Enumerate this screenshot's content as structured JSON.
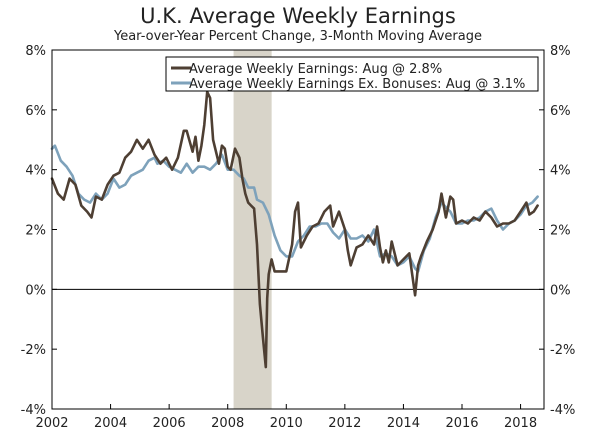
{
  "chart_data": {
    "type": "line",
    "title": "U.K. Average Weekly Earnings",
    "subtitle": "Year-over-Year Percent Change, 3-Month Moving Average",
    "xlabel": "",
    "ylabel": "",
    "xlim": [
      2002,
      2018.8
    ],
    "ylim": [
      -4,
      8
    ],
    "yticks": [
      -4,
      -2,
      0,
      2,
      4,
      6,
      8
    ],
    "ytick_labels": [
      "-4%",
      "-2%",
      "0%",
      "2%",
      "4%",
      "6%",
      "8%"
    ],
    "xticks": [
      2002,
      2004,
      2006,
      2008,
      2010,
      2012,
      2014,
      2016,
      2018
    ],
    "xtick_labels": [
      "2002",
      "2004",
      "2006",
      "2008",
      "2010",
      "2012",
      "2014",
      "2016",
      "2018"
    ],
    "recession": {
      "start": 2008.2,
      "end": 2009.5
    },
    "legend_position": "top-right",
    "colors": {
      "recession": "#d8d4c9",
      "zero_line": "#000000",
      "axis": "#555555"
    },
    "series": [
      {
        "name": "Average Weekly Earnings: Aug @ 2.8%",
        "color": "#4e3f33",
        "points": [
          [
            2002.0,
            3.7
          ],
          [
            2002.2,
            3.2
          ],
          [
            2002.4,
            3.0
          ],
          [
            2002.6,
            3.7
          ],
          [
            2002.8,
            3.5
          ],
          [
            2003.0,
            2.8
          ],
          [
            2003.2,
            2.6
          ],
          [
            2003.35,
            2.4
          ],
          [
            2003.5,
            3.1
          ],
          [
            2003.7,
            3.0
          ],
          [
            2003.9,
            3.5
          ],
          [
            2004.1,
            3.8
          ],
          [
            2004.3,
            3.9
          ],
          [
            2004.5,
            4.4
          ],
          [
            2004.7,
            4.6
          ],
          [
            2004.9,
            5.0
          ],
          [
            2005.1,
            4.7
          ],
          [
            2005.3,
            5.0
          ],
          [
            2005.5,
            4.5
          ],
          [
            2005.7,
            4.2
          ],
          [
            2005.9,
            4.4
          ],
          [
            2006.1,
            4.0
          ],
          [
            2006.3,
            4.4
          ],
          [
            2006.5,
            5.3
          ],
          [
            2006.6,
            5.3
          ],
          [
            2006.8,
            4.6
          ],
          [
            2006.9,
            5.1
          ],
          [
            2007.0,
            4.3
          ],
          [
            2007.1,
            4.8
          ],
          [
            2007.2,
            5.5
          ],
          [
            2007.3,
            6.6
          ],
          [
            2007.4,
            6.4
          ],
          [
            2007.5,
            5.0
          ],
          [
            2007.7,
            4.2
          ],
          [
            2007.8,
            4.8
          ],
          [
            2007.9,
            4.7
          ],
          [
            2008.0,
            4.1
          ],
          [
            2008.1,
            4.0
          ],
          [
            2008.25,
            4.7
          ],
          [
            2008.4,
            4.4
          ],
          [
            2008.5,
            3.7
          ],
          [
            2008.6,
            3.2
          ],
          [
            2008.7,
            2.9
          ],
          [
            2008.8,
            2.8
          ],
          [
            2008.9,
            2.7
          ],
          [
            2009.0,
            1.5
          ],
          [
            2009.1,
            -0.5
          ],
          [
            2009.2,
            -1.6
          ],
          [
            2009.3,
            -2.6
          ],
          [
            2009.35,
            -0.3
          ],
          [
            2009.4,
            0.5
          ],
          [
            2009.5,
            1.0
          ],
          [
            2009.6,
            0.6
          ],
          [
            2009.8,
            0.6
          ],
          [
            2010.0,
            0.6
          ],
          [
            2010.2,
            1.5
          ],
          [
            2010.3,
            2.6
          ],
          [
            2010.4,
            2.9
          ],
          [
            2010.5,
            1.4
          ],
          [
            2010.7,
            1.8
          ],
          [
            2010.9,
            2.1
          ],
          [
            2011.1,
            2.2
          ],
          [
            2011.3,
            2.6
          ],
          [
            2011.5,
            2.8
          ],
          [
            2011.6,
            2.1
          ],
          [
            2011.8,
            2.6
          ],
          [
            2012.0,
            2.0
          ],
          [
            2012.1,
            1.3
          ],
          [
            2012.2,
            0.8
          ],
          [
            2012.4,
            1.4
          ],
          [
            2012.6,
            1.5
          ],
          [
            2012.8,
            1.8
          ],
          [
            2013.0,
            1.5
          ],
          [
            2013.1,
            2.1
          ],
          [
            2013.2,
            1.4
          ],
          [
            2013.3,
            0.9
          ],
          [
            2013.4,
            1.3
          ],
          [
            2013.5,
            0.9
          ],
          [
            2013.6,
            1.6
          ],
          [
            2013.8,
            0.8
          ],
          [
            2014.0,
            1.0
          ],
          [
            2014.2,
            1.2
          ],
          [
            2014.3,
            0.5
          ],
          [
            2014.4,
            -0.2
          ],
          [
            2014.5,
            0.8
          ],
          [
            2014.6,
            1.1
          ],
          [
            2014.8,
            1.6
          ],
          [
            2015.0,
            2.0
          ],
          [
            2015.2,
            2.6
          ],
          [
            2015.3,
            3.2
          ],
          [
            2015.45,
            2.4
          ],
          [
            2015.6,
            3.1
          ],
          [
            2015.7,
            3.0
          ],
          [
            2015.8,
            2.2
          ],
          [
            2016.0,
            2.3
          ],
          [
            2016.2,
            2.2
          ],
          [
            2016.4,
            2.4
          ],
          [
            2016.6,
            2.3
          ],
          [
            2016.8,
            2.6
          ],
          [
            2017.0,
            2.4
          ],
          [
            2017.2,
            2.1
          ],
          [
            2017.4,
            2.2
          ],
          [
            2017.6,
            2.2
          ],
          [
            2017.8,
            2.3
          ],
          [
            2018.0,
            2.6
          ],
          [
            2018.2,
            2.9
          ],
          [
            2018.3,
            2.5
          ],
          [
            2018.45,
            2.6
          ],
          [
            2018.58,
            2.8
          ]
        ]
      },
      {
        "name": "Average Weekly Earnings Ex. Bonuses: Aug @ 3.1%",
        "color": "#7ea2bb",
        "points": [
          [
            2002.0,
            4.7
          ],
          [
            2002.1,
            4.8
          ],
          [
            2002.3,
            4.3
          ],
          [
            2002.5,
            4.1
          ],
          [
            2002.7,
            3.8
          ],
          [
            2002.9,
            3.2
          ],
          [
            2003.1,
            3.0
          ],
          [
            2003.3,
            2.9
          ],
          [
            2003.5,
            3.2
          ],
          [
            2003.7,
            3.0
          ],
          [
            2003.9,
            3.2
          ],
          [
            2004.1,
            3.7
          ],
          [
            2004.3,
            3.4
          ],
          [
            2004.5,
            3.5
          ],
          [
            2004.7,
            3.8
          ],
          [
            2004.9,
            3.9
          ],
          [
            2005.1,
            4.0
          ],
          [
            2005.3,
            4.3
          ],
          [
            2005.5,
            4.4
          ],
          [
            2005.6,
            4.2
          ],
          [
            2005.8,
            4.3
          ],
          [
            2006.0,
            4.1
          ],
          [
            2006.2,
            4.0
          ],
          [
            2006.4,
            3.9
          ],
          [
            2006.6,
            4.2
          ],
          [
            2006.8,
            3.9
          ],
          [
            2007.0,
            4.1
          ],
          [
            2007.2,
            4.1
          ],
          [
            2007.4,
            4.0
          ],
          [
            2007.6,
            4.2
          ],
          [
            2007.8,
            4.5
          ],
          [
            2008.0,
            4.0
          ],
          [
            2008.2,
            4.0
          ],
          [
            2008.4,
            3.8
          ],
          [
            2008.55,
            3.7
          ],
          [
            2008.7,
            3.4
          ],
          [
            2008.9,
            3.4
          ],
          [
            2009.0,
            3.0
          ],
          [
            2009.2,
            2.9
          ],
          [
            2009.4,
            2.5
          ],
          [
            2009.6,
            1.8
          ],
          [
            2009.8,
            1.3
          ],
          [
            2010.0,
            1.1
          ],
          [
            2010.2,
            1.1
          ],
          [
            2010.4,
            1.6
          ],
          [
            2010.6,
            1.8
          ],
          [
            2010.8,
            2.1
          ],
          [
            2011.0,
            2.1
          ],
          [
            2011.2,
            2.2
          ],
          [
            2011.4,
            2.2
          ],
          [
            2011.6,
            1.9
          ],
          [
            2011.8,
            1.7
          ],
          [
            2012.0,
            2.0
          ],
          [
            2012.2,
            1.7
          ],
          [
            2012.4,
            1.7
          ],
          [
            2012.6,
            1.8
          ],
          [
            2012.8,
            1.6
          ],
          [
            2013.0,
            2.0
          ],
          [
            2013.2,
            1.1
          ],
          [
            2013.4,
            1.2
          ],
          [
            2013.6,
            1.1
          ],
          [
            2013.8,
            0.8
          ],
          [
            2014.0,
            0.9
          ],
          [
            2014.2,
            1.1
          ],
          [
            2014.4,
            0.7
          ],
          [
            2014.5,
            0.6
          ],
          [
            2014.7,
            1.3
          ],
          [
            2014.9,
            1.7
          ],
          [
            2015.1,
            2.4
          ],
          [
            2015.3,
            2.9
          ],
          [
            2015.4,
            2.8
          ],
          [
            2015.6,
            2.6
          ],
          [
            2015.8,
            2.2
          ],
          [
            2016.0,
            2.2
          ],
          [
            2016.2,
            2.3
          ],
          [
            2016.4,
            2.3
          ],
          [
            2016.6,
            2.4
          ],
          [
            2016.8,
            2.6
          ],
          [
            2017.0,
            2.7
          ],
          [
            2017.2,
            2.3
          ],
          [
            2017.4,
            2.0
          ],
          [
            2017.6,
            2.2
          ],
          [
            2017.8,
            2.3
          ],
          [
            2018.0,
            2.5
          ],
          [
            2018.2,
            2.8
          ],
          [
            2018.4,
            2.9
          ],
          [
            2018.58,
            3.1
          ]
        ]
      }
    ]
  }
}
